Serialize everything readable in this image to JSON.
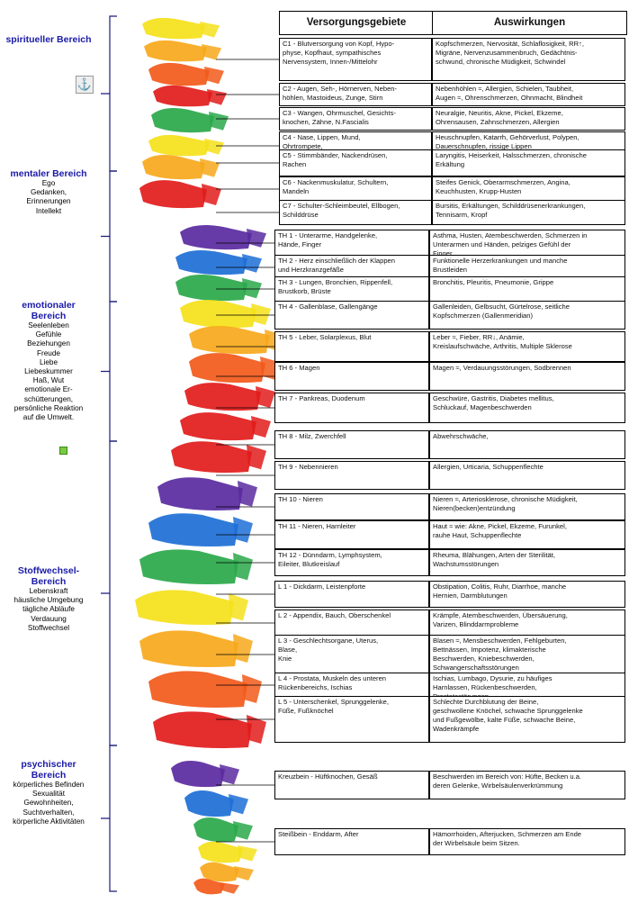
{
  "headers": {
    "left": "Versorgungsgebiete",
    "right": "Auswirkungen"
  },
  "icons": {
    "anchor": "anchor-icon",
    "marker": "green-square-icon"
  },
  "regions": [
    {
      "title": "spiritueller Bereich",
      "desc": ""
    },
    {
      "title": "mentaler Bereich",
      "desc": "Ego\nGedanken,\nErinnerungen\nIntellekt"
    },
    {
      "title": "emotionaler Bereich",
      "desc": "Seelenleben\nGefühle\nBeziehungen\nFreude\nLiebe\nLiebeskummer\nHaß, Wut\nemotionale Er-\nschütterungen,\npersönliche Reaktion\nauf die Umwelt."
    },
    {
      "title": "Stoffwechsel-Bereich",
      "desc": "Lebenskraft\nhäusliche Umgebung\ntägliche Abläufe\nVerdauung\nStoffwechsel"
    },
    {
      "title": "psychischer Bereich",
      "desc": "körperliches Befinden\nSexualität\nGewohnheiten,\nSuchtverhalten,\nkörperliche Aktivitäten"
    }
  ],
  "rows": [
    {
      "left": "C1 -  Blutversorgung von Kopf, Hypo-\nphyse, Kopfhaut, sympathisches\nNervensystem, Innen-/Mittelohr",
      "right": "Kopfschmerzen, Nervosität, Schlaflosigkeit, RR↑,\nMigräne, Nervenzusammenbruch, Gedächtnis-\nschwund, chronische Müdigkeit, Schwindel"
    },
    {
      "left": "C2 -  Augen, Seh-, Hörnerven, Neben-\nhöhlen, Mastoideus, Zunge, Stirn",
      "right": "Nebenhöhlen ≈, Allergien, Schielen, Taubheit,\nAugen ≈, Ohrenschmerzen, Ohnmacht, Blindheit"
    },
    {
      "left": "C3 -  Wangen, Ohrmuschel, Gesichts-\nknochen, Zähne, N.Fascialis",
      "right": "Neuralgie, Neuritis, Akne, Pickel, Ekzeme,\nOhrensausen, Zahnschmerzen, Allergien"
    },
    {
      "left": "C4 -  Nase, Lippen, Mund,\nOhrtrompete,\nEustachische Röhre",
      "right": "Heuschnupfen,  Katarrh, Gehörverlust, Polypen,\nDauerschnupfen, rissige Lippen"
    },
    {
      "left": "C5 -  Stimmbänder, Nackendrüsen,\nRachen",
      "right": "Laryngitis, Heiserkeit, Halsschmerzen, chronische\nErkältung"
    },
    {
      "left": "C6 -  Nackenmuskulatur, Schultern,\nMandeln",
      "right": "Steifes Genick, Oberarmschmerzen, Angina,\nKeuchhusten, Krupp-Husten"
    },
    {
      "left": "C7 - Schulter-Schleimbeutel, Ellbogen,\nSchilddrüse",
      "right": "Bursitis, Erkältungen, Schilddrüsenerkrankungen,\nTennisarm, Kropf"
    },
    {
      "left": "TH 1 -  Unterarme, Handgelenke,\nHände, Finger",
      "right": "Asthma, Husten, Atembeschwerden, Schmerzen in\nUnterarmen und Händen, pelziges Gefühl der\nFinger"
    },
    {
      "left": "TH 2 -  Herz einschließlich der Klappen\nund Herzkranzgefäße",
      "right": "Funktionelle Herzerkrankungen und manche\nBrustleiden"
    },
    {
      "left": "TH 3 - Lungen, Bronchien, Rippenfell,\nBrustkorb, Brüste",
      "right": "Bronchitis, Pleuritis, Pneumonie, Grippe"
    },
    {
      "left": "TH 4 - Gallenblase, Gallengänge",
      "right": "Gallenleiden, Gelbsucht, Gürtelrose, seitliche\nKopfschmerzen (Gallenmeridian)"
    },
    {
      "left": "TH 5 - Leber, Solarplexus, Blut",
      "right": "Leber ≈, Fieber, RR↓, Anämie,\nKreislaufschwäche, Arthritis, Multiple Sklerose"
    },
    {
      "left": "TH 6 - Magen",
      "right": "Magen ≈, Verdauungsstörungen, Sodbrennen"
    },
    {
      "left": "TH 7 - Pankreas, Duodenum",
      "right": "Geschwüre, Gastritis, Diabetes mellitus,\nSchluckauf, Magenbeschwerden"
    },
    {
      "left": "TH 8 -  Milz, Zwerchfell",
      "right": "Abwehrschwäche,"
    },
    {
      "left": "TH 9 -  Nebennieren",
      "right": "Allergien, Urticaria, Schuppenflechte"
    },
    {
      "left": "TH 10 - Nieren",
      "right": "Nieren ≈, Arteriosklerose, chronische Müdigkeit,\nNieren(becken)entzündung"
    },
    {
      "left": "TH 11 - Nieren, Harnleiter",
      "right": "Haut ≈ wie:  Akne, Pickel, Ekzeme, Furunkel,\nrauhe Haut, Schuppenflechte"
    },
    {
      "left": "TH 12 - Dünndarm, Lymphsystem,\nEileiter, Blutkreislauf",
      "right": "Rheuma, Blähungen, Arten der Sterilität,\nWachstumsstörungen"
    },
    {
      "left": "L 1 - Dickdarm, Leistenpforte",
      "right": "Obstipation, Colitis, Ruhr, Diarrhoe, manche\nHernien, Darmblutungen"
    },
    {
      "left": "L 2 - Appendix, Bauch, Oberschenkel",
      "right": "Krämpfe, Atembeschwerden, Übersäuerung,\nVarizen, Blinddarmprobleme"
    },
    {
      "left": "L 3 - Geschlechtsorgane, Uterus,\nBlase,\nKnie",
      "right": "Blasen ≈, Mensbeschwerden, Fehlgeburten,\nBettnässen, Impotenz, klimakterische\nBeschwerden, Kniebeschwerden,\nSchwangerschaftsstörungen"
    },
    {
      "left": "L 4 - Prostata, Muskeln des unteren\nRückenbereichs, Ischias",
      "right": "Ischias, Lumbago, Dysurie, zu häufiges\nHarnlassen, Rückenbeschwerden,\nProstatastörungen"
    },
    {
      "left": "L 5 - Unterschenkel, Sprunggelenke,\nFüße, Fußknöchel",
      "right": "Schlechte Durchblutung der Beine,\ngeschwollene Knöchel, schwache Sprunggelenke\nund Fußgewölbe, kalte Füße, schwache Beine,\nWadenkrämpfe"
    },
    {
      "left": "Kreuzbein - Hüftknochen, Gesäß",
      "right": "Beschwerden im Bereich von: Hüfte, Becken u.a.\nderen Gelenke, Wirbelsäulenverkrümmung"
    },
    {
      "left": "Steißbein - Enddarm, After",
      "right": "Hämorrhoiden, Afterjucken, Schmerzen am Ende\nder Wirbelsäule beim Sitzen."
    }
  ]
}
